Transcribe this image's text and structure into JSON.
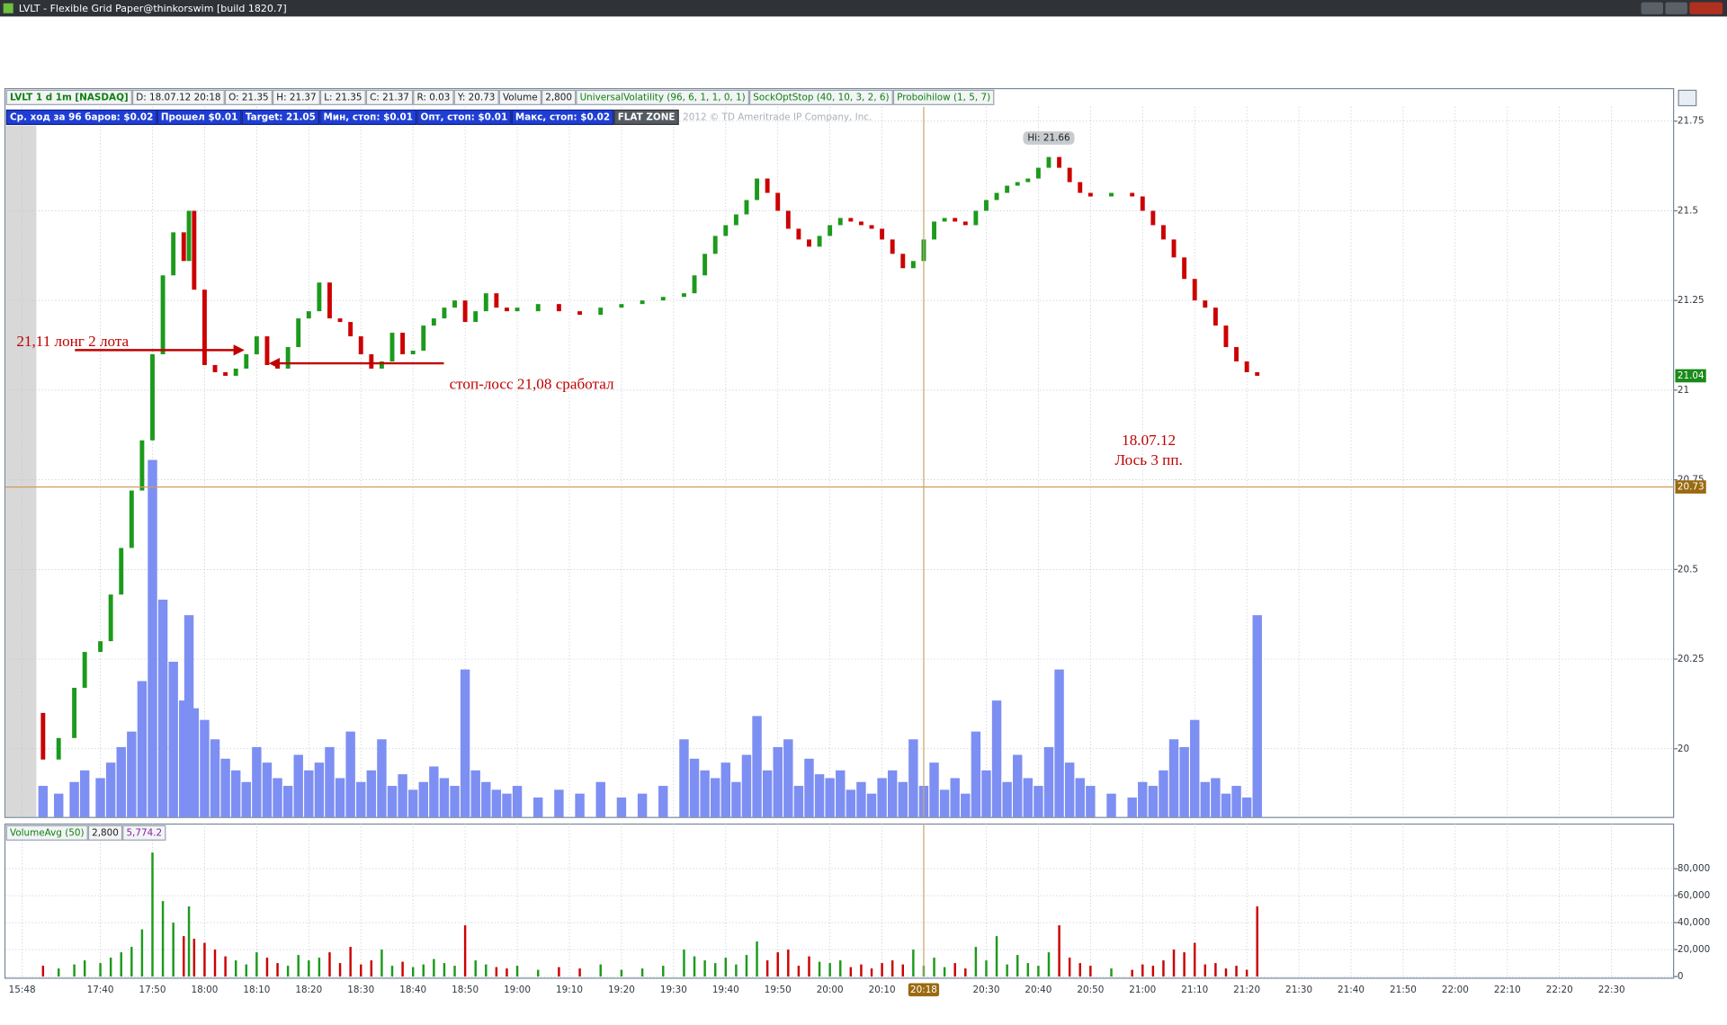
{
  "window": {
    "title": "LVLT - Flexible Grid Paper@thinkorswim [build 1820.7]"
  },
  "header": {
    "row1": [
      "LVLT 1 d 1m [NASDAQ]",
      "D: 18.07.12 20:18",
      "O: 21.35",
      "H: 21.37",
      "L: 21.35",
      "C: 21.37",
      "R: 0.03",
      "Y: 20.73",
      "Volume",
      "2,800",
      "UniversalVolatility (96, 6, 1, 1, 0, 1)",
      "SockOptStop (40, 10, 3, 2, 6)",
      "Proboihilow (1, 5, 7)"
    ],
    "row2": [
      "Ср. ход за 96 баров: $0.02",
      "Прошел $0.01",
      "Target: 21.05",
      "Мин, стоп: $0.01",
      "Опт, стоп: $0.01",
      "Макс, стоп: $0.02"
    ],
    "flat_zone": "FLAT ZONE",
    "copyright": "2012 © TD Ameritrade IP Company, Inc."
  },
  "price_chart": {
    "type": "candlestick",
    "xlim": [
      -18.2,
      302
    ],
    "xticks": [
      {
        "value": -15,
        "label": "15:48"
      },
      {
        "value": 0,
        "label": "17:40"
      },
      {
        "value": 10,
        "label": "17:50"
      },
      {
        "value": 20,
        "label": "18:00"
      },
      {
        "value": 30,
        "label": "18:10"
      },
      {
        "value": 40,
        "label": "18:20"
      },
      {
        "value": 50,
        "label": "18:30"
      },
      {
        "value": 60,
        "label": "18:40"
      },
      {
        "value": 70,
        "label": "18:50"
      },
      {
        "value": 80,
        "label": "19:00"
      },
      {
        "value": 90,
        "label": "19:10"
      },
      {
        "value": 100,
        "label": "19:20"
      },
      {
        "value": 110,
        "label": "19:30"
      },
      {
        "value": 120,
        "label": "19:40"
      },
      {
        "value": 130,
        "label": "19:50"
      },
      {
        "value": 140,
        "label": "20:00"
      },
      {
        "value": 150,
        "label": "20:10"
      },
      {
        "value": 170,
        "label": "20:30"
      },
      {
        "value": 180,
        "label": "20:40"
      },
      {
        "value": 190,
        "label": "20:50"
      },
      {
        "value": 200,
        "label": "21:00"
      },
      {
        "value": 210,
        "label": "21:10"
      },
      {
        "value": 220,
        "label": "21:20"
      },
      {
        "value": 230,
        "label": "21:30"
      },
      {
        "value": 240,
        "label": "21:40"
      },
      {
        "value": 250,
        "label": "21:50"
      },
      {
        "value": 260,
        "label": "22:00"
      },
      {
        "value": 270,
        "label": "22:10"
      },
      {
        "value": 280,
        "label": "22:20"
      },
      {
        "value": 290,
        "label": "22:30"
      }
    ],
    "ylim": [
      19.81,
      21.79
    ],
    "yticks": [
      20,
      20.25,
      20.5,
      20.75,
      21,
      21.25,
      21.5,
      21.75
    ],
    "grid": true,
    "x": [
      -11,
      -8,
      -5,
      -3,
      0,
      2,
      4,
      6,
      8,
      10,
      12,
      14,
      16,
      17,
      18,
      20,
      22,
      24,
      26,
      28,
      30,
      32,
      34,
      36,
      38,
      40,
      42,
      44,
      46,
      48,
      50,
      52,
      54,
      56,
      58,
      60,
      62,
      64,
      66,
      68,
      70,
      72,
      74,
      76,
      78,
      80,
      84,
      88,
      92,
      96,
      100,
      104,
      108,
      112,
      114,
      116,
      118,
      120,
      122,
      124,
      126,
      128,
      130,
      132,
      134,
      136,
      138,
      140,
      142,
      144,
      146,
      148,
      150,
      152,
      154,
      156,
      158,
      160,
      162,
      164,
      166,
      168,
      170,
      172,
      174,
      176,
      178,
      180,
      182,
      184,
      186,
      188,
      190,
      194,
      198,
      200,
      202,
      204,
      206,
      208,
      210,
      212,
      214,
      216,
      218,
      220,
      222
    ],
    "open": [
      20.1,
      19.97,
      20.03,
      20.17,
      20.27,
      20.3,
      20.43,
      20.56,
      20.72,
      20.86,
      21.1,
      21.32,
      21.44,
      21.36,
      21.5,
      21.28,
      21.07,
      21.05,
      21.04,
      21.06,
      21.1,
      21.15,
      21.07,
      21.06,
      21.12,
      21.2,
      21.22,
      21.3,
      21.2,
      21.19,
      21.15,
      21.1,
      21.06,
      21.08,
      21.16,
      21.1,
      21.11,
      21.18,
      21.2,
      21.23,
      21.25,
      21.19,
      21.22,
      21.27,
      21.23,
      21.22,
      21.22,
      21.24,
      21.22,
      21.21,
      21.23,
      21.24,
      21.25,
      21.26,
      21.27,
      21.32,
      21.38,
      21.43,
      21.46,
      21.49,
      21.53,
      21.59,
      21.55,
      21.5,
      21.45,
      21.42,
      21.4,
      21.43,
      21.46,
      21.48,
      21.47,
      21.46,
      21.45,
      21.42,
      21.38,
      21.34,
      21.36,
      21.42,
      21.47,
      21.48,
      21.47,
      21.46,
      21.5,
      21.53,
      21.55,
      21.57,
      21.58,
      21.59,
      21.62,
      21.65,
      21.62,
      21.58,
      21.55,
      21.54,
      21.55,
      21.54,
      21.5,
      21.46,
      21.42,
      21.37,
      21.31,
      21.25,
      21.23,
      21.18,
      21.12,
      21.08,
      21.05
    ],
    "close": [
      19.97,
      20.03,
      20.17,
      20.27,
      20.3,
      20.43,
      20.56,
      20.72,
      20.86,
      21.1,
      21.32,
      21.44,
      21.36,
      21.5,
      21.28,
      21.07,
      21.05,
      21.04,
      21.06,
      21.1,
      21.15,
      21.07,
      21.06,
      21.12,
      21.2,
      21.22,
      21.3,
      21.2,
      21.19,
      21.15,
      21.1,
      21.06,
      21.08,
      21.16,
      21.1,
      21.11,
      21.18,
      21.2,
      21.23,
      21.25,
      21.19,
      21.22,
      21.27,
      21.23,
      21.22,
      21.23,
      21.24,
      21.22,
      21.21,
      21.23,
      21.24,
      21.25,
      21.26,
      21.27,
      21.32,
      21.38,
      21.43,
      21.46,
      21.49,
      21.53,
      21.59,
      21.55,
      21.5,
      21.45,
      21.42,
      21.4,
      21.43,
      21.46,
      21.48,
      21.47,
      21.46,
      21.45,
      21.42,
      21.38,
      21.34,
      21.36,
      21.42,
      21.47,
      21.48,
      21.47,
      21.46,
      21.5,
      21.53,
      21.55,
      21.57,
      21.58,
      21.59,
      21.62,
      21.65,
      21.62,
      21.58,
      21.55,
      21.54,
      21.55,
      21.54,
      21.5,
      21.46,
      21.42,
      21.37,
      21.31,
      21.25,
      21.23,
      21.18,
      21.12,
      21.08,
      21.05,
      21.04
    ],
    "volume": [
      8000,
      6000,
      9000,
      12000,
      10000,
      14000,
      18000,
      22000,
      35000,
      92000,
      56000,
      40000,
      30000,
      52000,
      28000,
      25000,
      20000,
      15000,
      12000,
      9000,
      18000,
      14000,
      10000,
      8000,
      16000,
      12000,
      14000,
      18000,
      10000,
      22000,
      9000,
      12000,
      20000,
      8000,
      11000,
      7000,
      9000,
      13000,
      10000,
      8000,
      38000,
      12000,
      9000,
      7000,
      6000,
      8000,
      5000,
      7000,
      6000,
      9000,
      5000,
      6000,
      8000,
      20000,
      15000,
      12000,
      10000,
      14000,
      9000,
      16000,
      26000,
      12000,
      18000,
      20000,
      8000,
      15000,
      11000,
      10000,
      12000,
      7000,
      9000,
      6000,
      10000,
      12000,
      9000,
      20000,
      8000,
      14000,
      7000,
      10000,
      6000,
      22000,
      12000,
      30000,
      9000,
      16000,
      10000,
      8000,
      18000,
      38000,
      14000,
      10000,
      8000,
      6000,
      5000,
      9000,
      8000,
      12000,
      20000,
      18000,
      25000,
      9000,
      10000,
      6000,
      8000,
      5000,
      52000
    ],
    "up_color": "#1c9a1c",
    "down_color": "#cc0000",
    "volume_color": "#7d8ff2",
    "last_price": 21.04,
    "prev_close": 20.73,
    "cursor_time": {
      "value": 158,
      "label": "20:18"
    },
    "high": {
      "value": 21.66,
      "label": "Hi: 21.66"
    },
    "annotations": {
      "entry": "21,11 лонг 2 лота",
      "stop": "стоп-лосс 21,08 сработал",
      "date": "18.07.12",
      "result": "Лось 3 пп."
    }
  },
  "volume_chart": {
    "title": "VolumeAvg (50)",
    "current": "2,800",
    "average": "5,774.2",
    "ylim": [
      0,
      113500
    ],
    "yticks": [
      0,
      {
        "value": 20000,
        "label": "20,000"
      },
      {
        "value": 40000,
        "label": "40,000"
      },
      {
        "value": 60000,
        "label": "60,000"
      },
      {
        "value": 80000,
        "label": "80,000"
      }
    ]
  }
}
